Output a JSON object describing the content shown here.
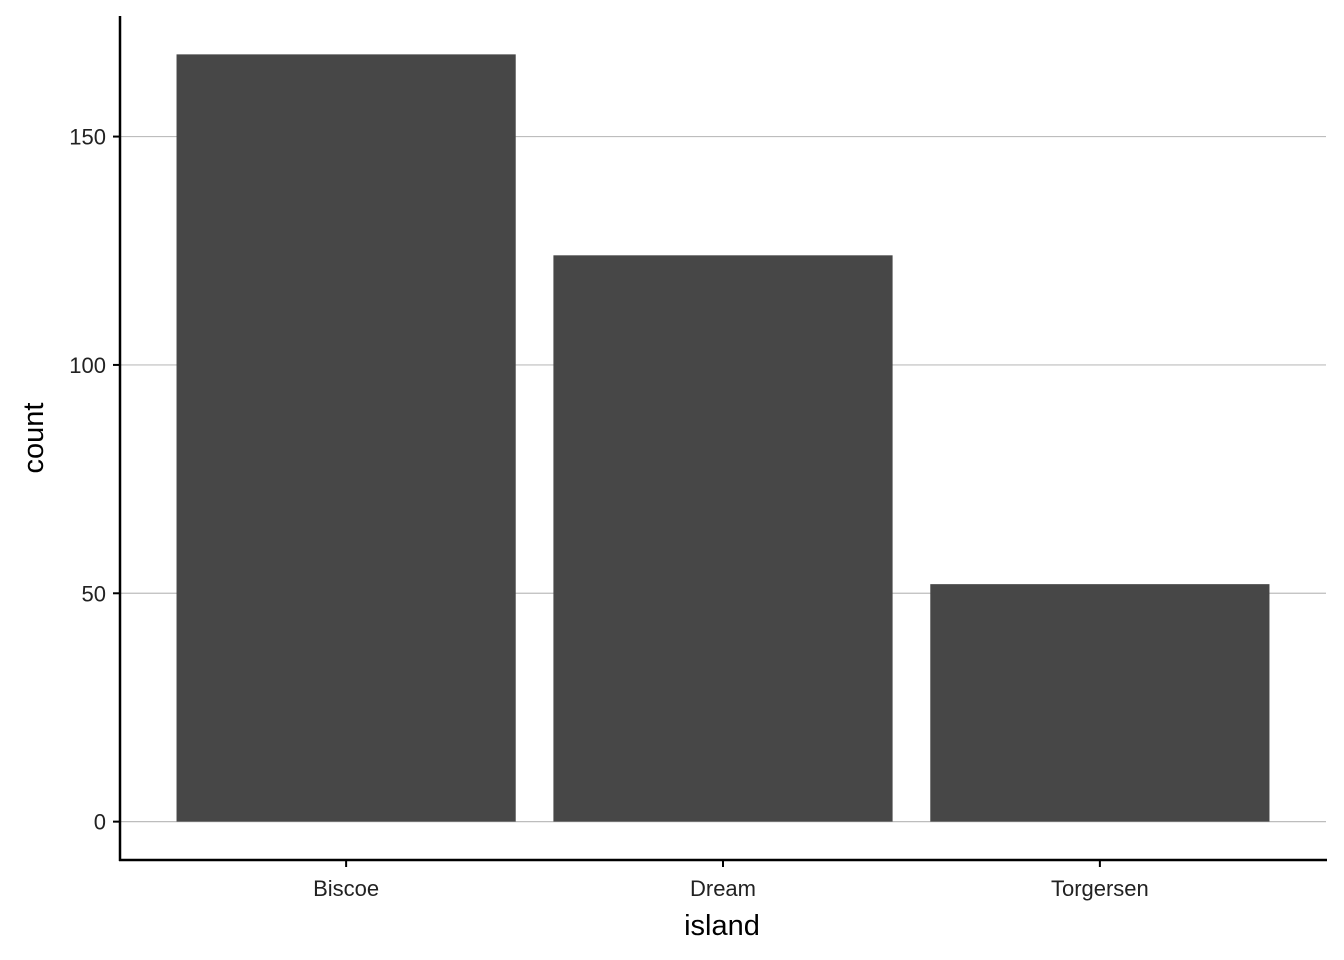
{
  "chart_data": {
    "type": "bar",
    "x_label": "island",
    "y_label": "count",
    "categories": [
      "Biscoe",
      "Dream",
      "Torgersen"
    ],
    "values": [
      168,
      124,
      52
    ],
    "color": "#474747",
    "ylim": [
      -8.4,
      176.4
    ],
    "yticks": [
      0,
      50,
      100,
      150
    ],
    "grid": true
  }
}
